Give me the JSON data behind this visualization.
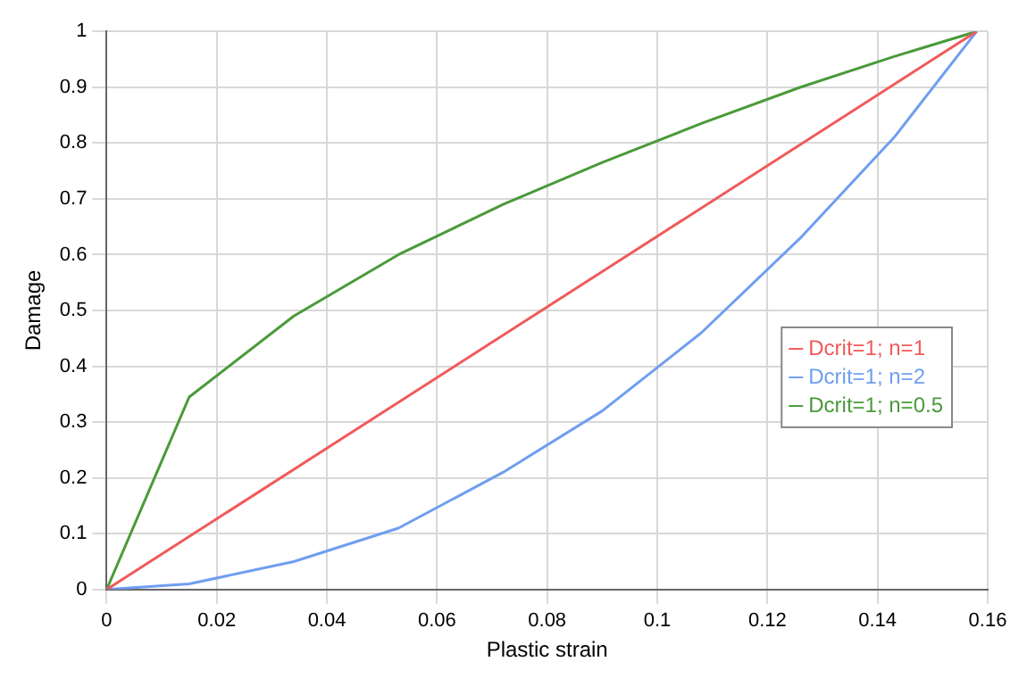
{
  "chart_data": {
    "type": "line",
    "xlabel": "Plastic strain",
    "ylabel": "Damage",
    "xlim": [
      0,
      0.16
    ],
    "xticks": [
      0,
      0.02,
      0.04,
      0.06,
      0.08,
      0.1,
      0.12,
      0.14,
      0.16
    ],
    "ylim": [
      0,
      1
    ],
    "yticks": [
      0,
      0.1,
      0.2,
      0.3,
      0.4,
      0.5,
      0.6,
      0.7,
      0.8,
      0.9,
      1
    ],
    "grid": true,
    "legend": "right",
    "marker": "none",
    "line_style": "solid",
    "series": [
      {
        "name": "Dcrit=1; n=1",
        "color": "#f05a5a",
        "x": [
          0,
          0.158
        ],
        "values": [
          0,
          1
        ]
      },
      {
        "name": "Dcrit=1; n=2",
        "color": "#6f9ef0",
        "x": [
          0,
          0.015,
          0.034,
          0.053,
          0.072,
          0.09,
          0.108,
          0.126,
          0.143,
          0.158
        ],
        "values": [
          0,
          0.01,
          0.05,
          0.11,
          0.21,
          0.32,
          0.46,
          0.63,
          0.81,
          1
        ]
      },
      {
        "name": "Dcrit=1; n=0.5",
        "color": "#4a9a3a",
        "x": [
          0,
          0.015,
          0.034,
          0.053,
          0.072,
          0.09,
          0.108,
          0.126,
          0.143,
          0.158
        ],
        "values": [
          0,
          0.345,
          0.49,
          0.6,
          0.69,
          0.765,
          0.835,
          0.9,
          0.955,
          1
        ]
      }
    ]
  }
}
